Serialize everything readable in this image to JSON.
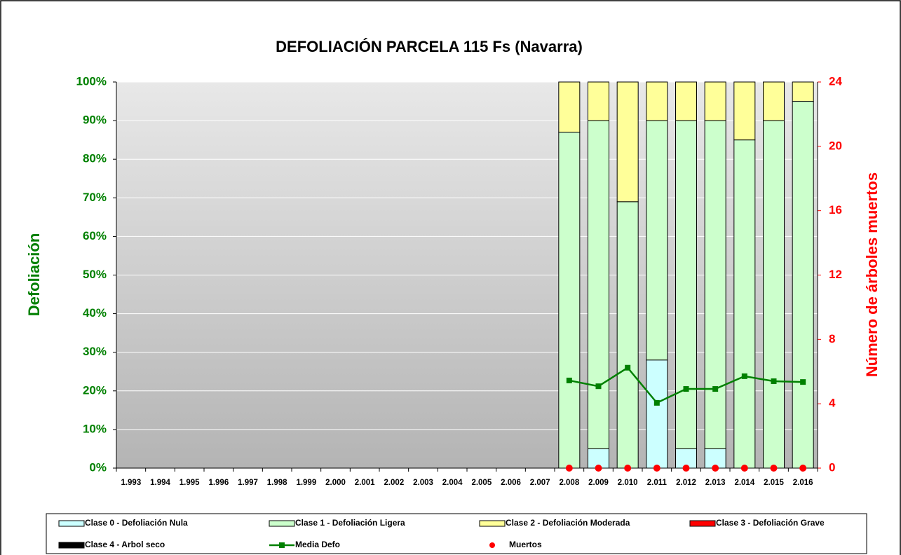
{
  "chart_data": {
    "type": "bar",
    "stacked": true,
    "title": "DEFOLIACIÓN PARCELA 115 Fs (Navarra)",
    "y_label": "Defoliación",
    "y2_label": "Número de árboles muertos",
    "y_color": "#008000",
    "y2_color": "#ff0000",
    "categories": [
      "1.993",
      "1.994",
      "1.995",
      "1.996",
      "1.997",
      "1.998",
      "1.999",
      "2.000",
      "2.001",
      "2.002",
      "2.003",
      "2.004",
      "2.005",
      "2.006",
      "2.007",
      "2.008",
      "2.009",
      "2.010",
      "2.011",
      "2.012",
      "2.013",
      "2.014",
      "2.015",
      "2.016"
    ],
    "ylim": [
      0,
      100
    ],
    "yticks": [
      {
        "value": 0,
        "label": "0%"
      },
      {
        "value": 10,
        "label": "10%"
      },
      {
        "value": 20,
        "label": "20%"
      },
      {
        "value": 30,
        "label": "30%"
      },
      {
        "value": 40,
        "label": "40%"
      },
      {
        "value": 50,
        "label": "50%"
      },
      {
        "value": 60,
        "label": "60%"
      },
      {
        "value": 70,
        "label": "70%"
      },
      {
        "value": 80,
        "label": "80%"
      },
      {
        "value": 90,
        "label": "90%"
      },
      {
        "value": 100,
        "label": "100%"
      }
    ],
    "y2lim": [
      0,
      24
    ],
    "y2ticks": [
      0,
      4,
      8,
      12,
      16,
      20,
      24
    ],
    "grid": true,
    "legend": "bottom",
    "series": [
      {
        "name": "Clase 0 - Defoliación Nula",
        "type": "bar",
        "color": "#ccffff",
        "values": [
          null,
          null,
          null,
          null,
          null,
          null,
          null,
          null,
          null,
          null,
          null,
          null,
          null,
          null,
          null,
          0,
          5,
          0,
          28,
          5,
          5,
          0,
          0,
          0
        ]
      },
      {
        "name": "Clase 1 - Defoliación Ligera",
        "type": "bar",
        "color": "#ccffcc",
        "values": [
          null,
          null,
          null,
          null,
          null,
          null,
          null,
          null,
          null,
          null,
          null,
          null,
          null,
          null,
          null,
          87,
          85,
          69,
          62,
          85,
          85,
          85,
          90,
          95
        ]
      },
      {
        "name": "Clase 2 - Defoliación Moderada",
        "type": "bar",
        "color": "#ffff99",
        "values": [
          null,
          null,
          null,
          null,
          null,
          null,
          null,
          null,
          null,
          null,
          null,
          null,
          null,
          null,
          null,
          13,
          10,
          31,
          10,
          10,
          10,
          15,
          10,
          5
        ]
      },
      {
        "name": "Clase 3 - Defoliación Grave",
        "type": "bar",
        "color": "#ff0000",
        "values": [
          null,
          null,
          null,
          null,
          null,
          null,
          null,
          null,
          null,
          null,
          null,
          null,
          null,
          null,
          null,
          0,
          0,
          0,
          0,
          0,
          0,
          0,
          0,
          0
        ]
      },
      {
        "name": "Clase 4 - Arbol seco",
        "type": "bar",
        "color": "#000000",
        "values": [
          null,
          null,
          null,
          null,
          null,
          null,
          null,
          null,
          null,
          null,
          null,
          null,
          null,
          null,
          null,
          0,
          0,
          0,
          0,
          0,
          0,
          0,
          0,
          0
        ]
      },
      {
        "name": "Media Defo",
        "type": "line",
        "color": "#008000",
        "values": [
          null,
          null,
          null,
          null,
          null,
          null,
          null,
          null,
          null,
          null,
          null,
          null,
          null,
          null,
          null,
          22.7,
          21.2,
          26,
          16.9,
          20.5,
          20.5,
          23.8,
          22.5,
          22.3
        ]
      },
      {
        "name": "Muertos",
        "type": "scatter",
        "color": "#ff0000",
        "axis": "y2",
        "values": [
          null,
          null,
          null,
          null,
          null,
          null,
          null,
          null,
          null,
          null,
          null,
          null,
          null,
          null,
          null,
          0,
          0,
          0,
          0,
          0,
          0,
          0,
          0,
          0
        ]
      }
    ]
  }
}
